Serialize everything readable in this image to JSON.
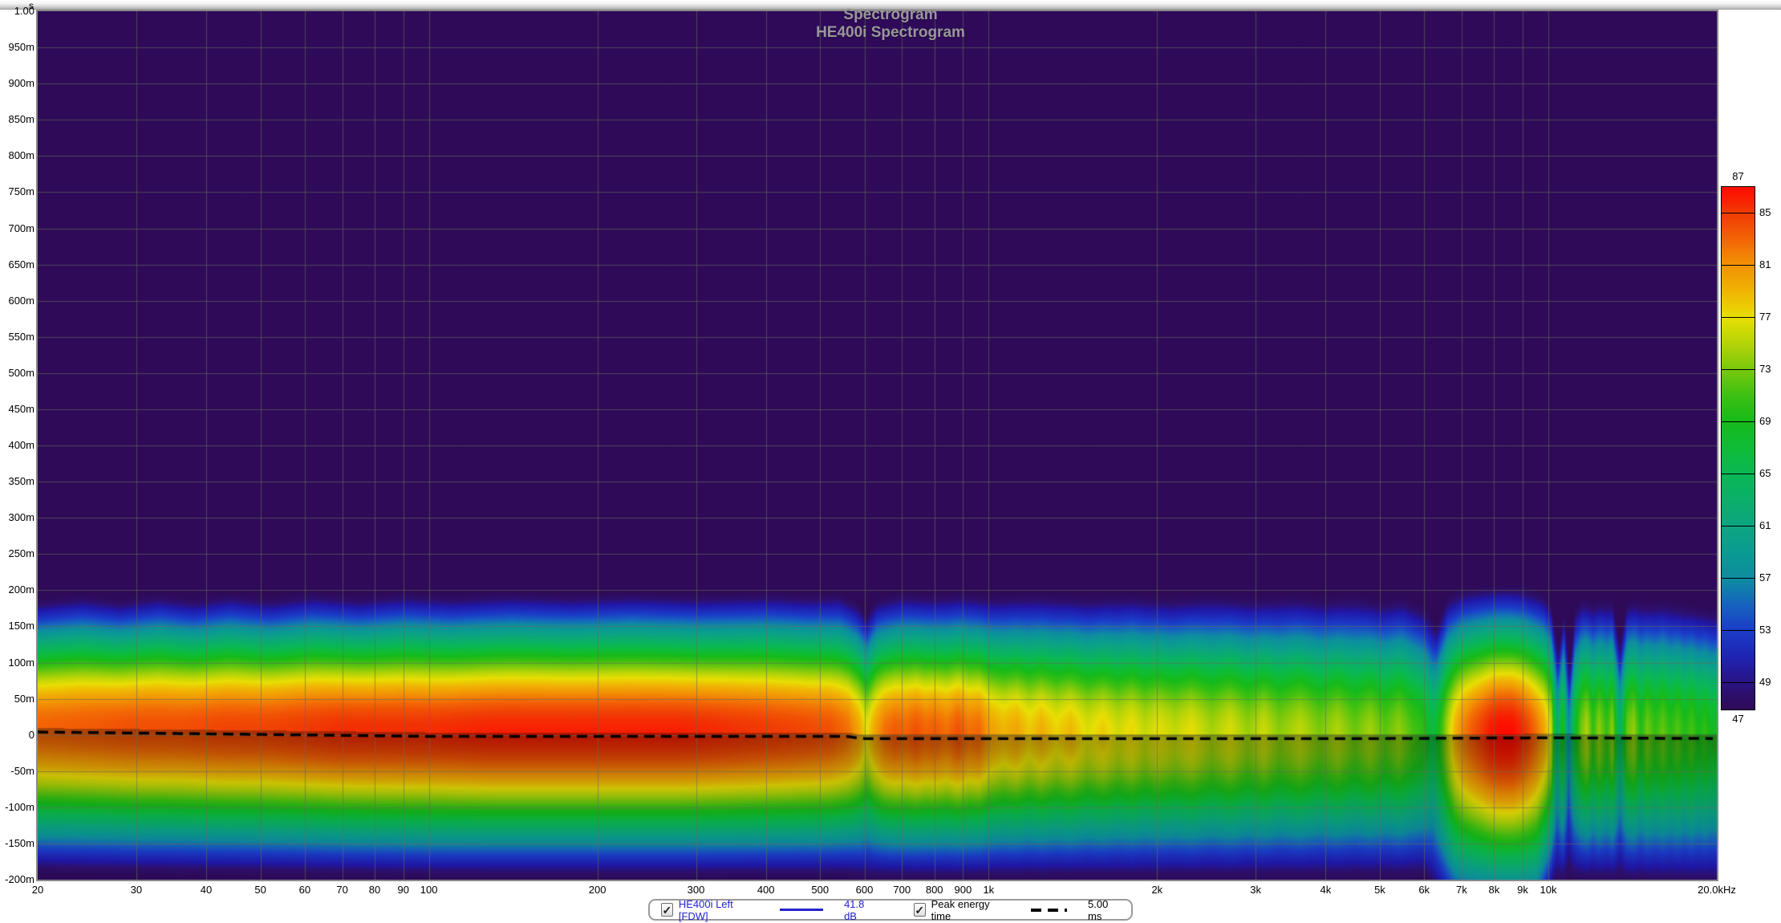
{
  "title": "Spectrogram",
  "subtitle": "HE400i Spectrogram",
  "icons": {
    "check": "✓"
  },
  "colorbar": {
    "top_label": "87",
    "bottom_label": "47",
    "boundaries": [
      87,
      85,
      81,
      77,
      73,
      69,
      65,
      61,
      57,
      53,
      49,
      47
    ]
  },
  "legend": {
    "series": [
      {
        "checked": true,
        "label": "HE400i Left [FDW]",
        "swatch": "line",
        "color": "#2323cf",
        "value": "41.8 dB"
      },
      {
        "checked": true,
        "label": "Peak energy time",
        "swatch": "dashes",
        "color": "#000000",
        "value": "5.00 ms"
      }
    ]
  },
  "chart_data": {
    "type": "heatmap",
    "title": "Spectrogram",
    "subtitle": "HE400i Spectrogram",
    "x_axis": {
      "scale": "log",
      "min_hz": 20,
      "max_hz": 20000,
      "ticks": [
        {
          "f": 20,
          "label": "20"
        },
        {
          "f": 30,
          "label": "30"
        },
        {
          "f": 40,
          "label": "40"
        },
        {
          "f": 50,
          "label": "50"
        },
        {
          "f": 60,
          "label": "60"
        },
        {
          "f": 70,
          "label": "70"
        },
        {
          "f": 80,
          "label": "80"
        },
        {
          "f": 90,
          "label": "90"
        },
        {
          "f": 100,
          "label": "100"
        },
        {
          "f": 200,
          "label": "200"
        },
        {
          "f": 300,
          "label": "300"
        },
        {
          "f": 400,
          "label": "400"
        },
        {
          "f": 500,
          "label": "500"
        },
        {
          "f": 600,
          "label": "600"
        },
        {
          "f": 700,
          "label": "700"
        },
        {
          "f": 800,
          "label": "800"
        },
        {
          "f": 900,
          "label": "900"
        },
        {
          "f": 1000,
          "label": "1k"
        },
        {
          "f": 2000,
          "label": "2k"
        },
        {
          "f": 3000,
          "label": "3k"
        },
        {
          "f": 4000,
          "label": "4k"
        },
        {
          "f": 5000,
          "label": "5k"
        },
        {
          "f": 6000,
          "label": "6k"
        },
        {
          "f": 7000,
          "label": "7k"
        },
        {
          "f": 8000,
          "label": "8k"
        },
        {
          "f": 9000,
          "label": "9k"
        },
        {
          "f": 10000,
          "label": "10k"
        },
        {
          "f": 20000,
          "label": "20.0kHz"
        }
      ]
    },
    "y_axis": {
      "unit": "s",
      "min_s": -0.2,
      "max_s": 1.0,
      "gridline_step_s": 0.05,
      "ticks": [
        {
          "t": 1.0,
          "label": "1.00"
        },
        {
          "t": 0.95,
          "label": "950m"
        },
        {
          "t": 0.9,
          "label": "900m"
        },
        {
          "t": 0.85,
          "label": "850m"
        },
        {
          "t": 0.8,
          "label": "800m"
        },
        {
          "t": 0.75,
          "label": "750m"
        },
        {
          "t": 0.7,
          "label": "700m"
        },
        {
          "t": 0.65,
          "label": "650m"
        },
        {
          "t": 0.6,
          "label": "600m"
        },
        {
          "t": 0.55,
          "label": "550m"
        },
        {
          "t": 0.5,
          "label": "500m"
        },
        {
          "t": 0.45,
          "label": "450m"
        },
        {
          "t": 0.4,
          "label": "400m"
        },
        {
          "t": 0.35,
          "label": "350m"
        },
        {
          "t": 0.3,
          "label": "300m"
        },
        {
          "t": 0.25,
          "label": "250m"
        },
        {
          "t": 0.2,
          "label": "200m"
        },
        {
          "t": 0.15,
          "label": "150m"
        },
        {
          "t": 0.1,
          "label": "100m"
        },
        {
          "t": 0.05,
          "label": "50m"
        },
        {
          "t": 0.0,
          "label": "0"
        },
        {
          "t": -0.05,
          "label": "-50m"
        },
        {
          "t": -0.1,
          "label": "-100m"
        },
        {
          "t": -0.15,
          "label": "-150m"
        },
        {
          "t": -0.2,
          "label": "-200m"
        }
      ]
    },
    "z_axis": {
      "unit": "dB",
      "min": 47,
      "max": 87
    },
    "peak_energy_time_ms": 5.0,
    "palette_stops": [
      [
        47,
        "#2e0a58"
      ],
      [
        48.5,
        "#2d1070"
      ],
      [
        50,
        "#2018aa"
      ],
      [
        53,
        "#1b3cc8"
      ],
      [
        55,
        "#1664be"
      ],
      [
        57,
        "#0e8ca0"
      ],
      [
        59,
        "#0a9b91"
      ],
      [
        61,
        "#0ca580"
      ],
      [
        63,
        "#0aaf69"
      ],
      [
        65,
        "#0ab755"
      ],
      [
        67,
        "#0ebc37"
      ],
      [
        69,
        "#16ba1a"
      ],
      [
        71,
        "#3cc012"
      ],
      [
        73,
        "#78c80c"
      ],
      [
        75,
        "#b4d408"
      ],
      [
        77,
        "#e8de04"
      ],
      [
        79,
        "#f0b404"
      ],
      [
        81,
        "#f29205"
      ],
      [
        83,
        "#f26405"
      ],
      [
        85,
        "#f03a04"
      ],
      [
        86,
        "#f82002"
      ],
      [
        87,
        "#fc0c00"
      ]
    ],
    "peak_db_by_freq": [
      [
        20,
        83
      ],
      [
        25,
        83.5
      ],
      [
        30,
        84
      ],
      [
        36,
        84
      ],
      [
        43,
        84.5
      ],
      [
        50,
        84.5
      ],
      [
        60,
        85
      ],
      [
        70,
        85.5
      ],
      [
        85,
        85.5
      ],
      [
        100,
        85.5
      ],
      [
        130,
        86
      ],
      [
        170,
        86
      ],
      [
        220,
        86
      ],
      [
        280,
        86
      ],
      [
        340,
        85.5
      ],
      [
        400,
        85
      ],
      [
        460,
        84.5
      ],
      [
        520,
        84
      ],
      [
        560,
        82.5
      ],
      [
        585,
        80
      ],
      [
        605,
        77
      ],
      [
        625,
        80
      ],
      [
        650,
        82.5
      ],
      [
        680,
        83.5
      ],
      [
        710,
        83
      ],
      [
        740,
        84
      ],
      [
        770,
        83
      ],
      [
        800,
        83.5
      ],
      [
        840,
        82.5
      ],
      [
        880,
        84
      ],
      [
        920,
        82.5
      ],
      [
        960,
        83
      ],
      [
        1000,
        80.5
      ],
      [
        1060,
        79
      ],
      [
        1120,
        80
      ],
      [
        1180,
        78
      ],
      [
        1240,
        79.5
      ],
      [
        1320,
        77.5
      ],
      [
        1400,
        79
      ],
      [
        1500,
        76.5
      ],
      [
        1600,
        78
      ],
      [
        1700,
        76
      ],
      [
        1800,
        77.5
      ],
      [
        1900,
        75.5
      ],
      [
        2000,
        77
      ],
      [
        2150,
        75.5
      ],
      [
        2300,
        77
      ],
      [
        2500,
        74.5
      ],
      [
        2700,
        76.5
      ],
      [
        2900,
        74
      ],
      [
        3100,
        76
      ],
      [
        3300,
        73.5
      ],
      [
        3600,
        75.5
      ],
      [
        3900,
        73
      ],
      [
        4200,
        75
      ],
      [
        4500,
        72.5
      ],
      [
        4800,
        74.5
      ],
      [
        5100,
        72
      ],
      [
        5400,
        74
      ],
      [
        5700,
        71.5
      ],
      [
        6000,
        70
      ],
      [
        6200,
        66
      ],
      [
        6400,
        70
      ],
      [
        6600,
        75
      ],
      [
        6800,
        79
      ],
      [
        7000,
        81.5
      ],
      [
        7300,
        83.5
      ],
      [
        7600,
        85
      ],
      [
        7900,
        86.5
      ],
      [
        8200,
        87
      ],
      [
        8600,
        87
      ],
      [
        8900,
        86
      ],
      [
        9200,
        84.5
      ],
      [
        9500,
        82.5
      ],
      [
        9800,
        80
      ],
      [
        10100,
        76
      ],
      [
        10350,
        62
      ],
      [
        10600,
        70
      ],
      [
        10850,
        57
      ],
      [
        11100,
        67
      ],
      [
        11400,
        72.5
      ],
      [
        11700,
        75
      ],
      [
        12000,
        70.5
      ],
      [
        12300,
        74
      ],
      [
        12700,
        70.5
      ],
      [
        13000,
        74
      ],
      [
        13400,
        63
      ],
      [
        13800,
        72.5
      ],
      [
        14200,
        74
      ],
      [
        14600,
        69.5
      ],
      [
        15000,
        73
      ],
      [
        15500,
        70.5
      ],
      [
        16000,
        72.5
      ],
      [
        16500,
        70
      ],
      [
        17000,
        72
      ],
      [
        17500,
        69.5
      ],
      [
        18000,
        71.5
      ],
      [
        18500,
        69
      ],
      [
        19000,
        70.5
      ],
      [
        19500,
        68.5
      ],
      [
        20000,
        69.5
      ]
    ],
    "band_top_time_by_freq": [
      [
        20,
        0.19
      ],
      [
        24,
        0.197
      ],
      [
        28,
        0.19
      ],
      [
        33,
        0.198
      ],
      [
        38,
        0.191
      ],
      [
        44,
        0.199
      ],
      [
        52,
        0.192
      ],
      [
        62,
        0.2
      ],
      [
        75,
        0.194
      ],
      [
        90,
        0.2
      ],
      [
        110,
        0.196
      ],
      [
        140,
        0.2
      ],
      [
        180,
        0.197
      ],
      [
        230,
        0.2
      ],
      [
        300,
        0.197
      ],
      [
        400,
        0.2
      ],
      [
        480,
        0.197
      ],
      [
        540,
        0.199
      ],
      [
        580,
        0.187
      ],
      [
        605,
        0.17
      ],
      [
        630,
        0.192
      ],
      [
        700,
        0.2
      ],
      [
        800,
        0.197
      ],
      [
        900,
        0.2
      ],
      [
        1000,
        0.196
      ],
      [
        1200,
        0.199
      ],
      [
        1500,
        0.195
      ],
      [
        1800,
        0.198
      ],
      [
        2100,
        0.194
      ],
      [
        2500,
        0.198
      ],
      [
        3000,
        0.194
      ],
      [
        3500,
        0.197
      ],
      [
        4000,
        0.193
      ],
      [
        4500,
        0.196
      ],
      [
        5000,
        0.19
      ],
      [
        5500,
        0.194
      ],
      [
        6000,
        0.18
      ],
      [
        6300,
        0.155
      ],
      [
        6600,
        0.195
      ],
      [
        7000,
        0.205
      ],
      [
        7500,
        0.208
      ],
      [
        8000,
        0.21
      ],
      [
        8500,
        0.21
      ],
      [
        9000,
        0.208
      ],
      [
        9400,
        0.203
      ],
      [
        9800,
        0.198
      ],
      [
        10100,
        0.185
      ],
      [
        10400,
        0.12
      ],
      [
        10650,
        0.175
      ],
      [
        10900,
        0.1
      ],
      [
        11150,
        0.18
      ],
      [
        11500,
        0.193
      ],
      [
        12000,
        0.188
      ],
      [
        12500,
        0.192
      ],
      [
        13000,
        0.19
      ],
      [
        13400,
        0.13
      ],
      [
        13800,
        0.188
      ],
      [
        14300,
        0.192
      ],
      [
        15000,
        0.188
      ],
      [
        16000,
        0.19
      ],
      [
        17000,
        0.186
      ],
      [
        18000,
        0.183
      ],
      [
        19000,
        0.18
      ],
      [
        20000,
        0.176
      ]
    ],
    "peak_line_time_by_freq": [
      [
        20,
        0.004
      ],
      [
        35,
        0.002
      ],
      [
        60,
        0.0
      ],
      [
        100,
        -0.002
      ],
      [
        200,
        -0.002
      ],
      [
        400,
        -0.002
      ],
      [
        560,
        -0.002
      ],
      [
        590,
        -0.005
      ],
      [
        1000,
        -0.005
      ],
      [
        5000,
        -0.005
      ],
      [
        10000,
        -0.004
      ],
      [
        20000,
        -0.005
      ]
    ],
    "decay_extent_by_freq": [
      [
        20,
        0.205
      ],
      [
        6000,
        0.205
      ],
      [
        6800,
        0.27
      ],
      [
        9500,
        0.28
      ],
      [
        10200,
        0.22
      ],
      [
        11000,
        0.21
      ],
      [
        20000,
        0.215
      ]
    ],
    "profile": {
      "above_exp": 1.35,
      "below_exp": 1.4,
      "dim_amount": 0.3,
      "dim_tau": 0.085,
      "peak_offset_s": 0.006
    }
  }
}
